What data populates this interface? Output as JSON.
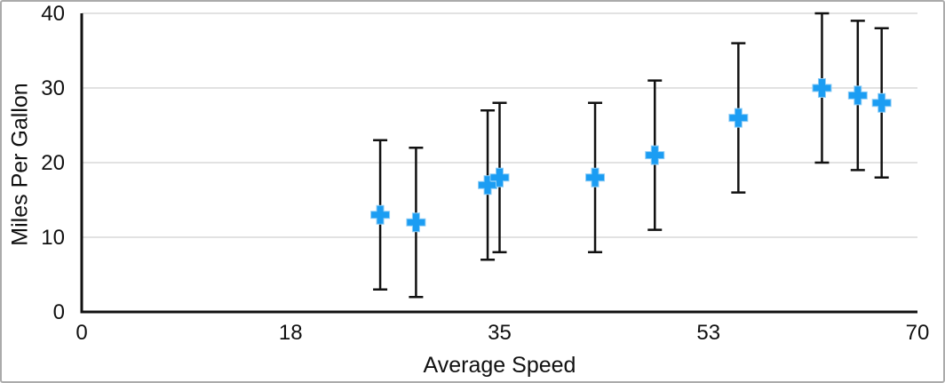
{
  "chart_data": {
    "type": "scatter",
    "title": "",
    "xlabel": "Average Speed",
    "ylabel": "Miles Per Gallon",
    "xlim": [
      0,
      70
    ],
    "ylim": [
      0,
      40
    ],
    "x_ticks": [
      0,
      18,
      35,
      53,
      70
    ],
    "y_ticks": [
      0,
      10,
      20,
      30,
      40
    ],
    "grid": "horizontal-only",
    "legend": "none",
    "marker_style": "plus",
    "error_bars": {
      "direction": "vertical",
      "type": "absolute",
      "plus": 10,
      "minus": 10
    },
    "points": [
      {
        "x": 25,
        "y": 13
      },
      {
        "x": 28,
        "y": 12
      },
      {
        "x": 34,
        "y": 17
      },
      {
        "x": 35,
        "y": 18
      },
      {
        "x": 43,
        "y": 18
      },
      {
        "x": 48,
        "y": 21
      },
      {
        "x": 55,
        "y": 26
      },
      {
        "x": 62,
        "y": 30
      },
      {
        "x": 65,
        "y": 29
      },
      {
        "x": 67,
        "y": 28
      }
    ],
    "colors": {
      "marker": "#1b9df3",
      "marker_edge": "#8ecdf6",
      "error_bar": "#111111",
      "axis_line": "#111111",
      "gridline": "#d9d9d9",
      "text": "#111111",
      "background": "#ffffff",
      "frame_border": "#ababab"
    }
  }
}
